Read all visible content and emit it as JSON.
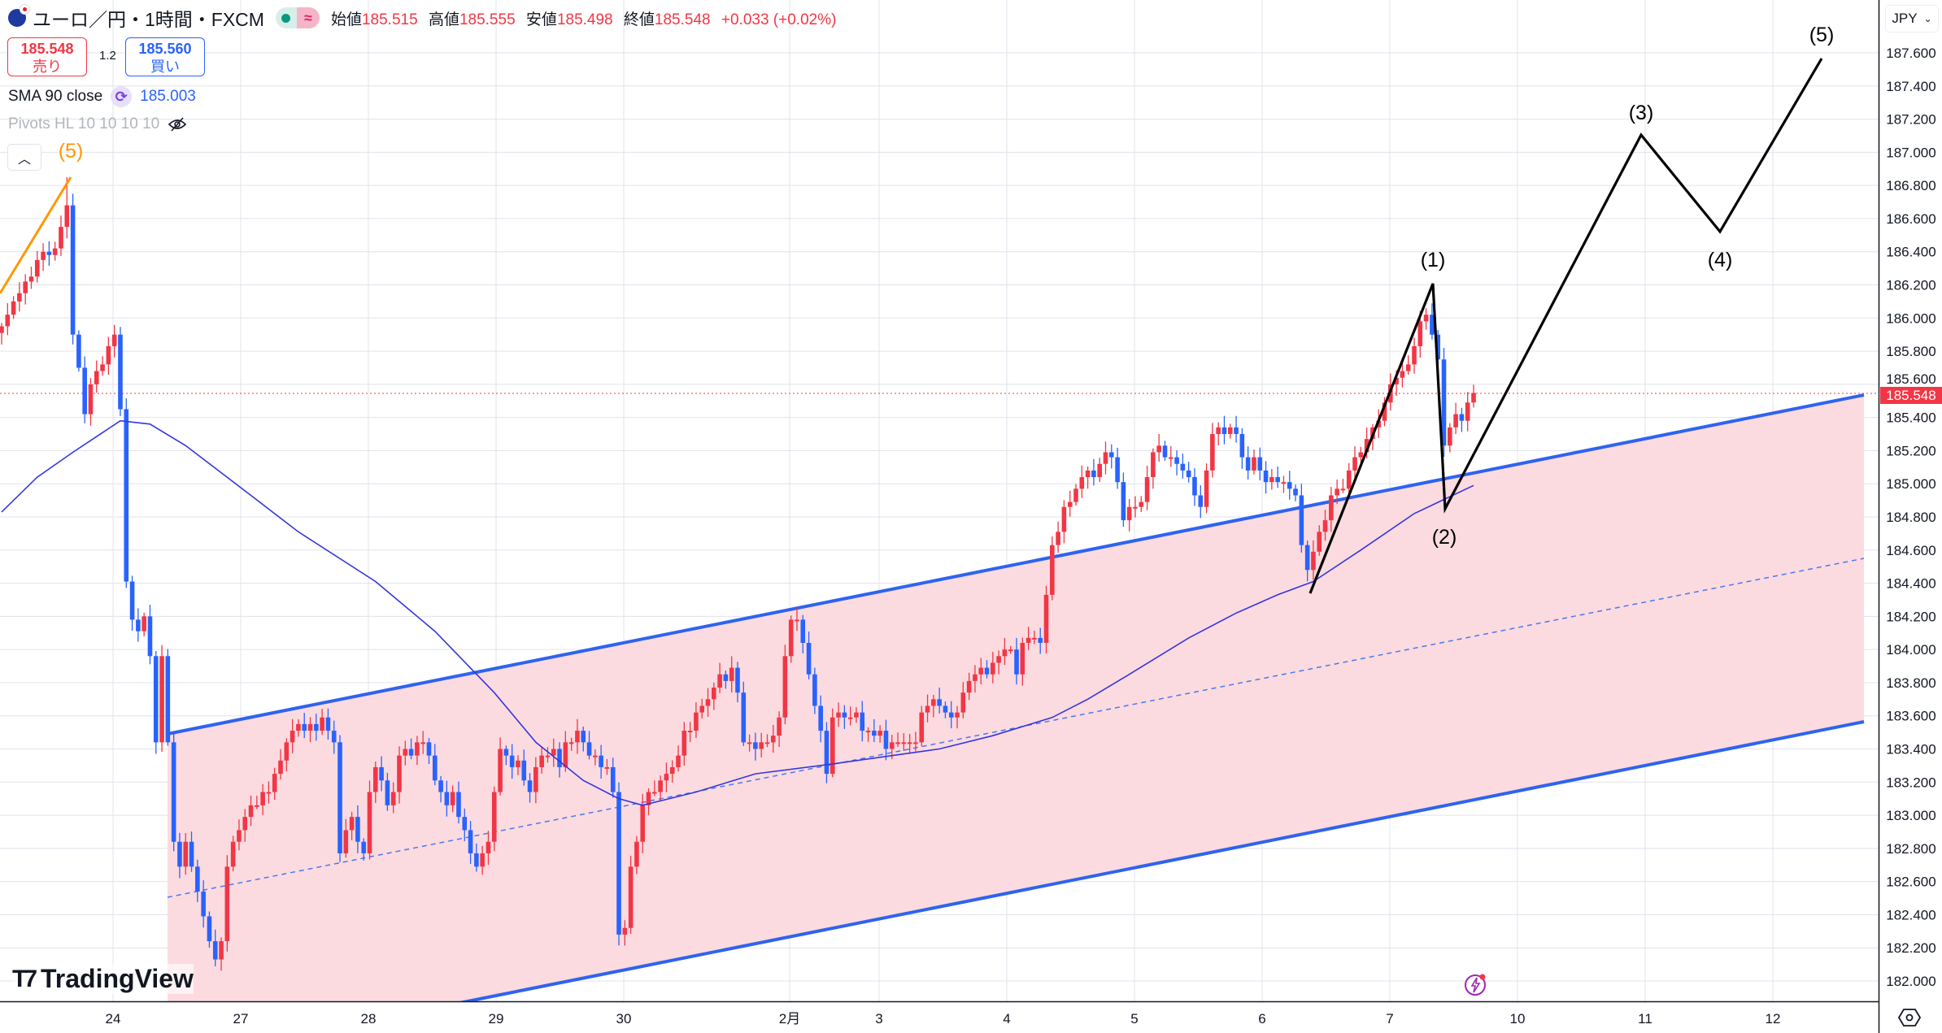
{
  "header": {
    "symbol_title": "ユーロ／円・1時間・FXCM",
    "open_label": "始値",
    "open": "185.515",
    "high_label": "高値",
    "high": "185.555",
    "low_label": "安値",
    "low": "185.498",
    "close_label": "終値",
    "close": "185.548",
    "change": "+0.033 (+0.02%)"
  },
  "trade": {
    "sell_price": "185.548",
    "sell_label": "売り",
    "spread": "1.2",
    "buy_price": "185.560",
    "buy_label": "買い"
  },
  "indicators": {
    "sma_label": "SMA 90 close",
    "sma_value": "185.003",
    "pivots_label": "Pivots HL 10 10 10 10"
  },
  "currency_selector": "JPY",
  "logo_text": "TradingView",
  "colors": {
    "up": "#f23645",
    "down": "#2962ff",
    "sma": "#3535e0",
    "channel": "#2f63f0",
    "fill": "#fbdbe0",
    "wave": "#000000",
    "prior_wave": "#ff9800"
  },
  "chart_data": {
    "type": "candlestick",
    "ylim": [
      182.0,
      187.6
    ],
    "y_ticks": [
      "187.600",
      "187.400",
      "187.200",
      "187.000",
      "186.800",
      "186.600",
      "186.400",
      "186.200",
      "186.000",
      "185.800",
      "185.600",
      "185.400",
      "185.200",
      "185.000",
      "184.800",
      "184.600",
      "184.400",
      "184.200",
      "184.000",
      "183.800",
      "183.600",
      "183.400",
      "183.200",
      "183.000",
      "182.800",
      "182.600",
      "182.400",
      "182.200",
      "182.000"
    ],
    "x_ticks": [
      "24",
      "27",
      "28",
      "29",
      "30",
      "2月",
      "3",
      "4",
      "5",
      "6",
      "7",
      "10",
      "11",
      "12"
    ],
    "last_price": "185.548",
    "closes": [
      185.95,
      186.02,
      186.1,
      186.15,
      186.22,
      186.25,
      186.35,
      186.4,
      186.38,
      186.42,
      186.55,
      186.68,
      185.9,
      185.7,
      185.42,
      185.6,
      185.68,
      185.72,
      185.83,
      185.9,
      185.45,
      184.41,
      184.18,
      184.11,
      184.2,
      183.96,
      183.44,
      183.96,
      183.44,
      182.84,
      182.69,
      182.84,
      182.69,
      182.54,
      182.39,
      182.24,
      182.13,
      182.24,
      182.69,
      182.84,
      182.91,
      182.99,
      183.06,
      183.06,
      183.14,
      183.14,
      183.25,
      183.33,
      183.44,
      183.51,
      183.55,
      183.51,
      183.55,
      183.51,
      183.59,
      183.51,
      183.44,
      182.77,
      182.91,
      182.99,
      182.84,
      182.77,
      183.14,
      183.29,
      183.21,
      183.06,
      183.14,
      183.36,
      183.4,
      183.36,
      183.44,
      183.44,
      183.36,
      183.21,
      183.14,
      183.06,
      183.14,
      182.99,
      182.91,
      182.77,
      182.69,
      182.77,
      182.84,
      183.14,
      183.4,
      183.36,
      183.29,
      183.33,
      183.21,
      183.14,
      183.29,
      183.36,
      183.36,
      183.4,
      183.29,
      183.44,
      183.44,
      183.51,
      183.44,
      183.36,
      183.36,
      183.29,
      183.29,
      183.14,
      182.28,
      182.32,
      182.69,
      182.84,
      183.06,
      183.14,
      183.14,
      183.21,
      183.25,
      183.29,
      183.36,
      183.51,
      183.51,
      183.62,
      183.66,
      183.7,
      183.77,
      183.85,
      183.81,
      183.89,
      183.74,
      183.44,
      183.44,
      183.4,
      183.44,
      183.44,
      183.48,
      183.59,
      183.96,
      184.18,
      184.18,
      184.04,
      183.85,
      183.66,
      183.51,
      183.25,
      183.59,
      183.62,
      183.59,
      183.59,
      183.62,
      183.51,
      183.51,
      183.48,
      183.51,
      183.4,
      183.44,
      183.44,
      183.44,
      183.44,
      183.44,
      183.62,
      183.66,
      183.7,
      183.66,
      183.62,
      183.59,
      183.62,
      183.74,
      183.81,
      183.85,
      183.89,
      183.85,
      183.92,
      183.96,
      184.0,
      184.0,
      183.85,
      184.04,
      184.07,
      184.07,
      184.04,
      184.33,
      184.63,
      184.71,
      184.86,
      184.89,
      184.97,
      185.04,
      185.08,
      185.04,
      185.12,
      185.19,
      185.16,
      185.01,
      184.78,
      184.86,
      184.86,
      184.89,
      185.04,
      185.19,
      185.23,
      185.16,
      185.16,
      185.12,
      185.08,
      185.04,
      184.93,
      184.86,
      185.08,
      185.3,
      185.34,
      185.3,
      185.34,
      185.3,
      185.16,
      185.08,
      185.16,
      185.08,
      185.01,
      185.04,
      185.01,
      185.01,
      184.97,
      184.93,
      184.63,
      184.48,
      184.59,
      184.71,
      184.78,
      184.93,
      184.97,
      184.97,
      185.08,
      185.16,
      185.19,
      185.27,
      185.34,
      185.38,
      185.49,
      185.6,
      185.64,
      185.68,
      185.72,
      185.83,
      185.98,
      186.02,
      185.9,
      185.75,
      185.23,
      185.34,
      185.42,
      185.38,
      185.49,
      185.548
    ],
    "sma90": [
      [
        0,
        184.83
      ],
      [
        6,
        185.04
      ],
      [
        12,
        185.19
      ],
      [
        20,
        185.38
      ],
      [
        25,
        185.36
      ],
      [
        31,
        185.23
      ],
      [
        42,
        184.93
      ],
      [
        50,
        184.71
      ],
      [
        63,
        184.41
      ],
      [
        73,
        184.11
      ],
      [
        83,
        183.74
      ],
      [
        90,
        183.44
      ],
      [
        98,
        183.21
      ],
      [
        104,
        183.1
      ],
      [
        108,
        183.06
      ],
      [
        117,
        183.14
      ],
      [
        127,
        183.25
      ],
      [
        140,
        183.31
      ],
      [
        150,
        183.36
      ],
      [
        158,
        183.4
      ],
      [
        167,
        183.48
      ],
      [
        177,
        183.59
      ],
      [
        183,
        183.7
      ],
      [
        190,
        183.85
      ],
      [
        200,
        184.07
      ],
      [
        208,
        184.22
      ],
      [
        215,
        184.33
      ],
      [
        221,
        184.41
      ],
      [
        229,
        184.6
      ],
      [
        238,
        184.82
      ],
      [
        248,
        184.99
      ]
    ],
    "wave_labels": {
      "prior_5": "(5)",
      "w1": "(1)",
      "w2": "(2)",
      "w3": "(3)",
      "w4": "(4)",
      "w5": "(5)"
    }
  }
}
